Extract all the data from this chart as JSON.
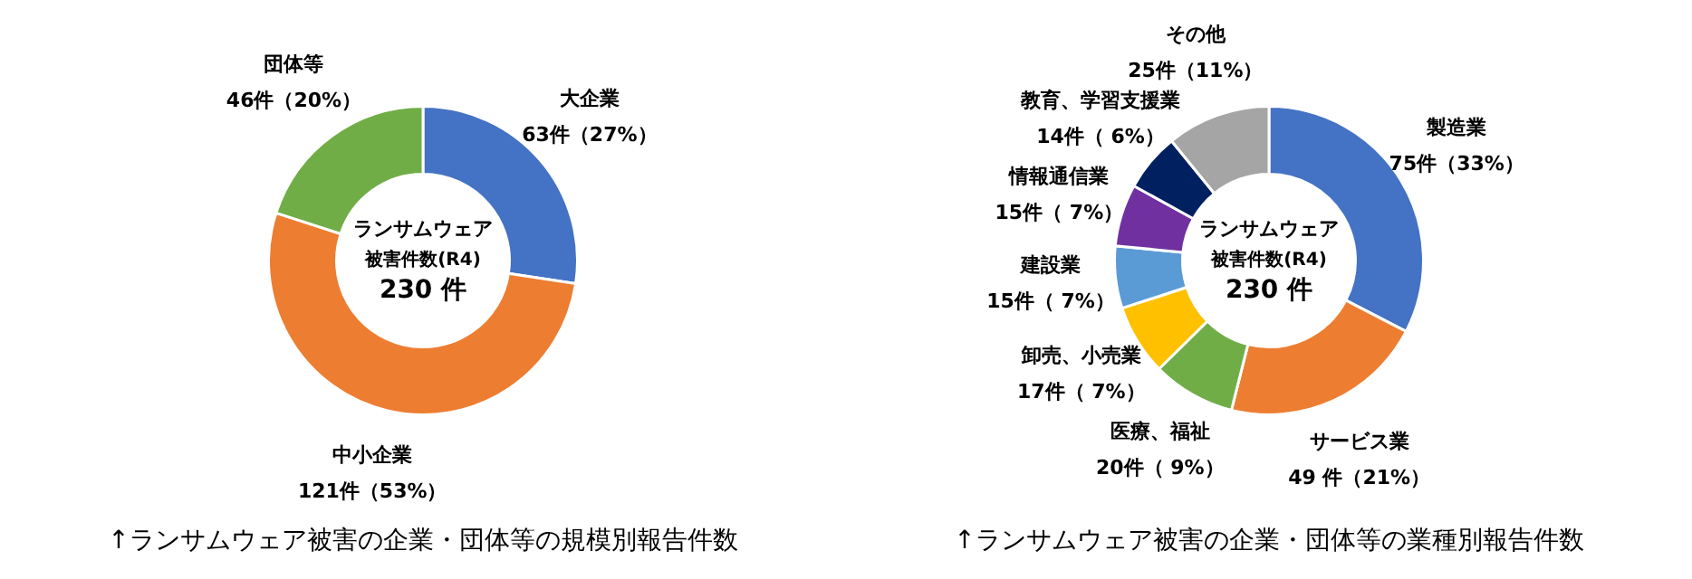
{
  "chart_data": [
    {
      "type": "donut",
      "title": "↑ランサムウェア被害の企業・団体等の規模別報告件数",
      "categories": [
        "大企業",
        "中小企業",
        "団体等"
      ],
      "values": [
        63,
        121,
        46
      ],
      "colors": [
        "#4472c4",
        "#ed7d31",
        "#70ad47"
      ],
      "value_labels": [
        "63件（27%）",
        "121件（53%）",
        "46件（20%）"
      ],
      "annotations": [
        "ランサムウェア",
        "被害件数(R4)",
        "230 件"
      ]
    },
    {
      "type": "donut",
      "title": "↑ランサムウェア被害の企業・団体等の業種別報告件数",
      "categories": [
        "製造業",
        "サービス業",
        "医療、福祉",
        "卸売、小売業",
        "建設業",
        "情報通信業",
        "教育、学習支援業",
        "その他"
      ],
      "values": [
        75,
        49,
        20,
        17,
        15,
        15,
        14,
        25
      ],
      "colors": [
        "#4472c4",
        "#ed7d31",
        "#70ad47",
        "#ffc000",
        "#5b9bd5",
        "#7030a0",
        "#002060",
        "#a5a5a5"
      ],
      "value_labels": [
        "75件（33%）",
        "49 件（21%）",
        "20件（ 9%）",
        "17件（ 7%）",
        "15件（ 7%）",
        "15件（ 7%）",
        "14件（ 6%）",
        "25件（11%）"
      ],
      "annotations": [
        "ランサムウェア",
        "被害件数(R4)",
        "230 件"
      ]
    }
  ]
}
